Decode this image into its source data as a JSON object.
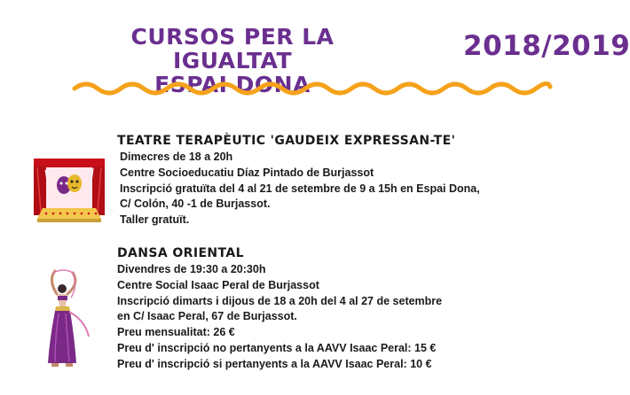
{
  "header": {
    "title_line1": "CURSOS PER LA IGUALTAT",
    "title_line2": "ESPAI DONA",
    "year": "2018/2019"
  },
  "courses": [
    {
      "title": "TEATRE TERAPÈUTIC 'GAUDEIX EXPRESSAN-TE'",
      "lines": [
        "Dimecres de 18 a 20h",
        "Centre Socioeducatiu Díaz Pintado de Burjassot",
        "Inscripció gratuïta del 4 al 21 de setembre de 9 a 15h en Espai Dona,",
        "C/ Colón, 40 -1 de Burjassot.",
        "Taller gratuït."
      ],
      "illustration": "theatre-stage-icon"
    },
    {
      "title": "DANSA ORIENTAL",
      "lines": [
        "Divendres de 19:30 a 20:30h",
        "Centre Social Isaac Peral de Burjassot",
        "Inscripció dimarts i dijous de 18 a 20h del 4 al 27 de setembre",
        "en C/ Isaac Peral, 67 de Burjassot.",
        "Preu mensualitat: 26 €",
        "Preu d'  inscripció no pertanyents a la AAVV Isaac Peral: 15 €",
        "Preu d' inscripció si pertanyents a la AAVV Isaac Peral: 10 €"
      ],
      "illustration": "belly-dancer-icon"
    }
  ],
  "colors": {
    "title_purple": "#6a2f8f",
    "wave_orange": "#f5a21b",
    "text": "#1a1a1a",
    "curtain_red": "#c8101a",
    "skirt_purple": "#7a2a86"
  }
}
